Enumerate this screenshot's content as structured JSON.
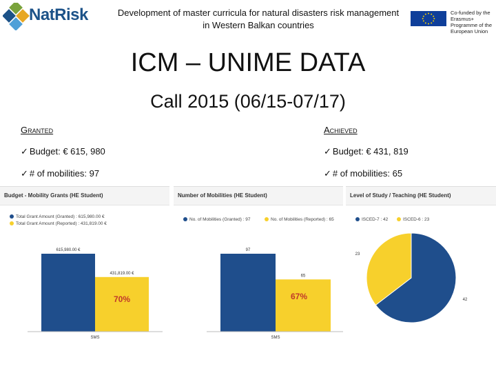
{
  "header": {
    "logo_text": "NatRisk",
    "project_title": "Development of master curricula for natural disasters risk management in Western Balkan countries",
    "eu_text": "Co-funded by the Erasmus+ Programme of the European Union"
  },
  "title": "ICM – UNIME DATA",
  "subtitle": "Call 2015 (06/15-07/17)",
  "granted": {
    "heading": "Granted",
    "budget": "Budget: € 615, 980",
    "mobilities": "# of mobilities: 97"
  },
  "achieved": {
    "heading": "Achieved",
    "budget": "Budget: € 431, 819",
    "mobilities": "# of mobilities: 65"
  },
  "colors": {
    "blue": "#1f4e8c",
    "yellow": "#f7d02c",
    "pct": "#c0392b"
  },
  "chart_data": [
    {
      "type": "bar",
      "title": "Budget - Mobility Grants (HE Student)",
      "legend": [
        "Total Grant Amount (Granted) : 615,980.00 €",
        "Total Grant Amount (Reported) : 431,819.00 €"
      ],
      "categories": [
        "SMS"
      ],
      "series": [
        {
          "name": "Granted",
          "values": [
            615980
          ],
          "label": "615,980.00 €"
        },
        {
          "name": "Reported",
          "values": [
            431819
          ],
          "label": "431,819.00 €"
        }
      ],
      "ylim": [
        0,
        615980
      ],
      "annotation": "70%"
    },
    {
      "type": "bar",
      "title": "Number of Mobilities (HE Student)",
      "legend": [
        "No. of Mobilities (Granted) : 97",
        "No. of Mobilities (Reported) : 65"
      ],
      "categories": [
        "SMS"
      ],
      "series": [
        {
          "name": "Granted",
          "values": [
            97
          ],
          "label": "97"
        },
        {
          "name": "Reported",
          "values": [
            65
          ],
          "label": "65"
        }
      ],
      "ylim": [
        0,
        97
      ],
      "annotation": "67%"
    },
    {
      "type": "pie",
      "title": "Level of Study / Teaching (HE Student)",
      "legend": [
        "ISCED-7 : 42",
        "ISCED-6 : 23"
      ],
      "slices": [
        {
          "name": "ISCED-7",
          "value": 42,
          "label": "42"
        },
        {
          "name": "ISCED-6",
          "value": 23,
          "label": "23"
        }
      ]
    }
  ]
}
